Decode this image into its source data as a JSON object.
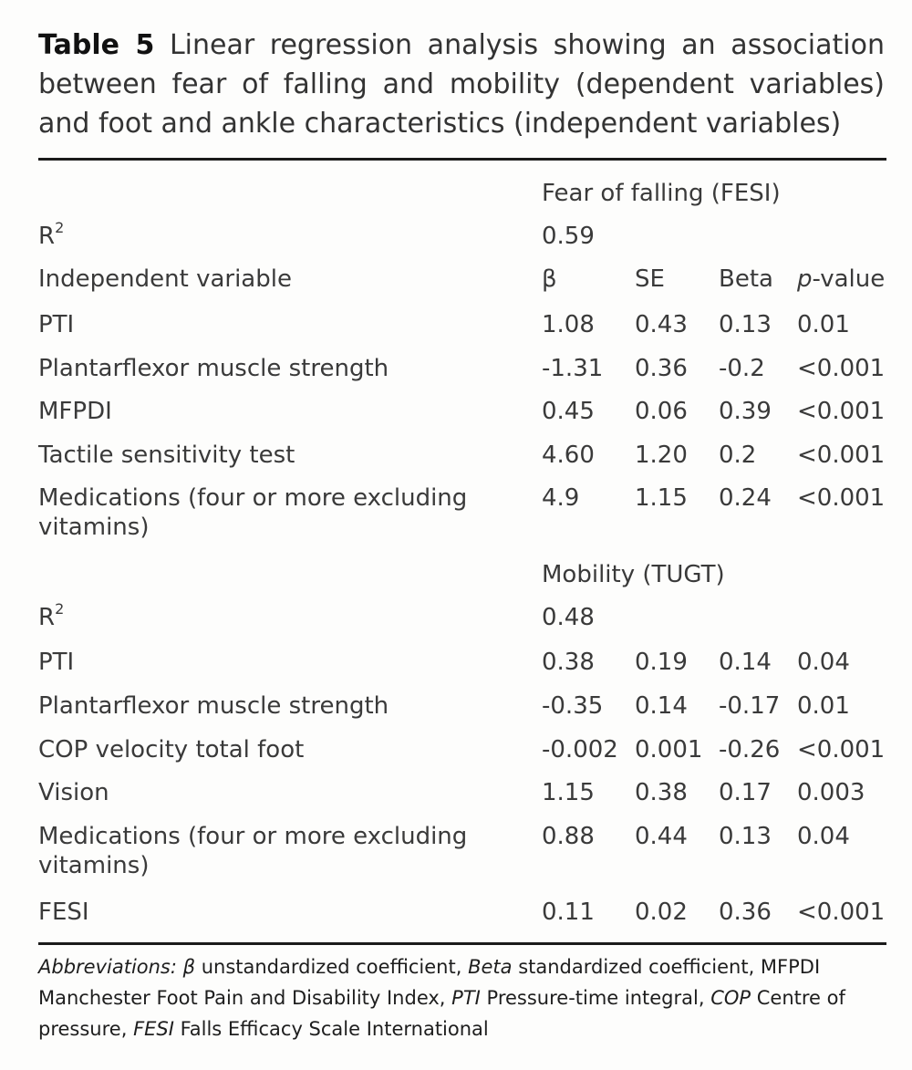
{
  "caption": {
    "label": "Table 5",
    "text": " Linear regression analysis showing an association between fear of falling and mobility (dependent variables) and foot and ankle characteristics (independent variables)"
  },
  "header": {
    "r2_base": "R",
    "r2_sup": "2",
    "indep_label": "Independent variable",
    "col_beta_symbol": "β",
    "col_se": "SE",
    "col_beta": "Beta",
    "col_p_italic": "p",
    "col_p_rest": "-value"
  },
  "groups": [
    {
      "title": "Fear of falling (FESI)",
      "r2": "0.59",
      "rows": [
        {
          "variable": "PTI",
          "b": "1.08",
          "se": "0.43",
          "beta": "0.13",
          "p": "0.01"
        },
        {
          "variable": "Plantarflexor muscle strength",
          "b": "-1.31",
          "se": "0.36",
          "beta": "-0.2",
          "p": "<0.001"
        },
        {
          "variable": "MFPDI",
          "b": "0.45",
          "se": "0.06",
          "beta": "0.39",
          "p": "<0.001"
        },
        {
          "variable": "Tactile sensitivity test",
          "b": "4.60",
          "se": "1.20",
          "beta": "0.2",
          "p": "<0.001"
        },
        {
          "variable": "Medications (four or more excluding vitamins)",
          "b": "4.9",
          "se": "1.15",
          "beta": "0.24",
          "p": "<0.001"
        }
      ]
    },
    {
      "title": "Mobility (TUGT)",
      "r2": "0.48",
      "rows": [
        {
          "variable": "PTI",
          "b": "0.38",
          "se": "0.19",
          "beta": "0.14",
          "p": "0.04"
        },
        {
          "variable": "Plantarflexor muscle strength",
          "b": "-0.35",
          "se": "0.14",
          "beta": "-0.17",
          "p": "0.01"
        },
        {
          "variable": "COP velocity total foot",
          "b": "-0.002",
          "se": "0.001",
          "beta": "-0.26",
          "p": "<0.001"
        },
        {
          "variable": "Vision",
          "b": "1.15",
          "se": "0.38",
          "beta": "0.17",
          "p": "0.003"
        },
        {
          "variable": "Medications (four or more excluding vitamins)",
          "b": "0.88",
          "se": "0.44",
          "beta": "0.13",
          "p": "0.04"
        },
        {
          "variable": "FESI",
          "b": "0.11",
          "se": "0.02",
          "beta": "0.36",
          "p": "<0.001"
        }
      ]
    }
  ],
  "footnote": {
    "abbr_label": "Abbreviations:",
    "abbr_beta_sym": " β",
    "abbr_beta_sym_text": " unstandardized coefficient, ",
    "abbr_beta_word": "Beta",
    "abbr_beta_word_text": " standardized coefficient, MFPDI Manchester Foot Pain and Disability Index, ",
    "abbr_pti": "PTI",
    "abbr_pti_text": " Pressure-time integral, ",
    "abbr_cop": "COP",
    "abbr_cop_text": " Centre of pressure, ",
    "abbr_fesi": "FESI",
    "abbr_fesi_text": " Falls Efficacy Scale International"
  }
}
